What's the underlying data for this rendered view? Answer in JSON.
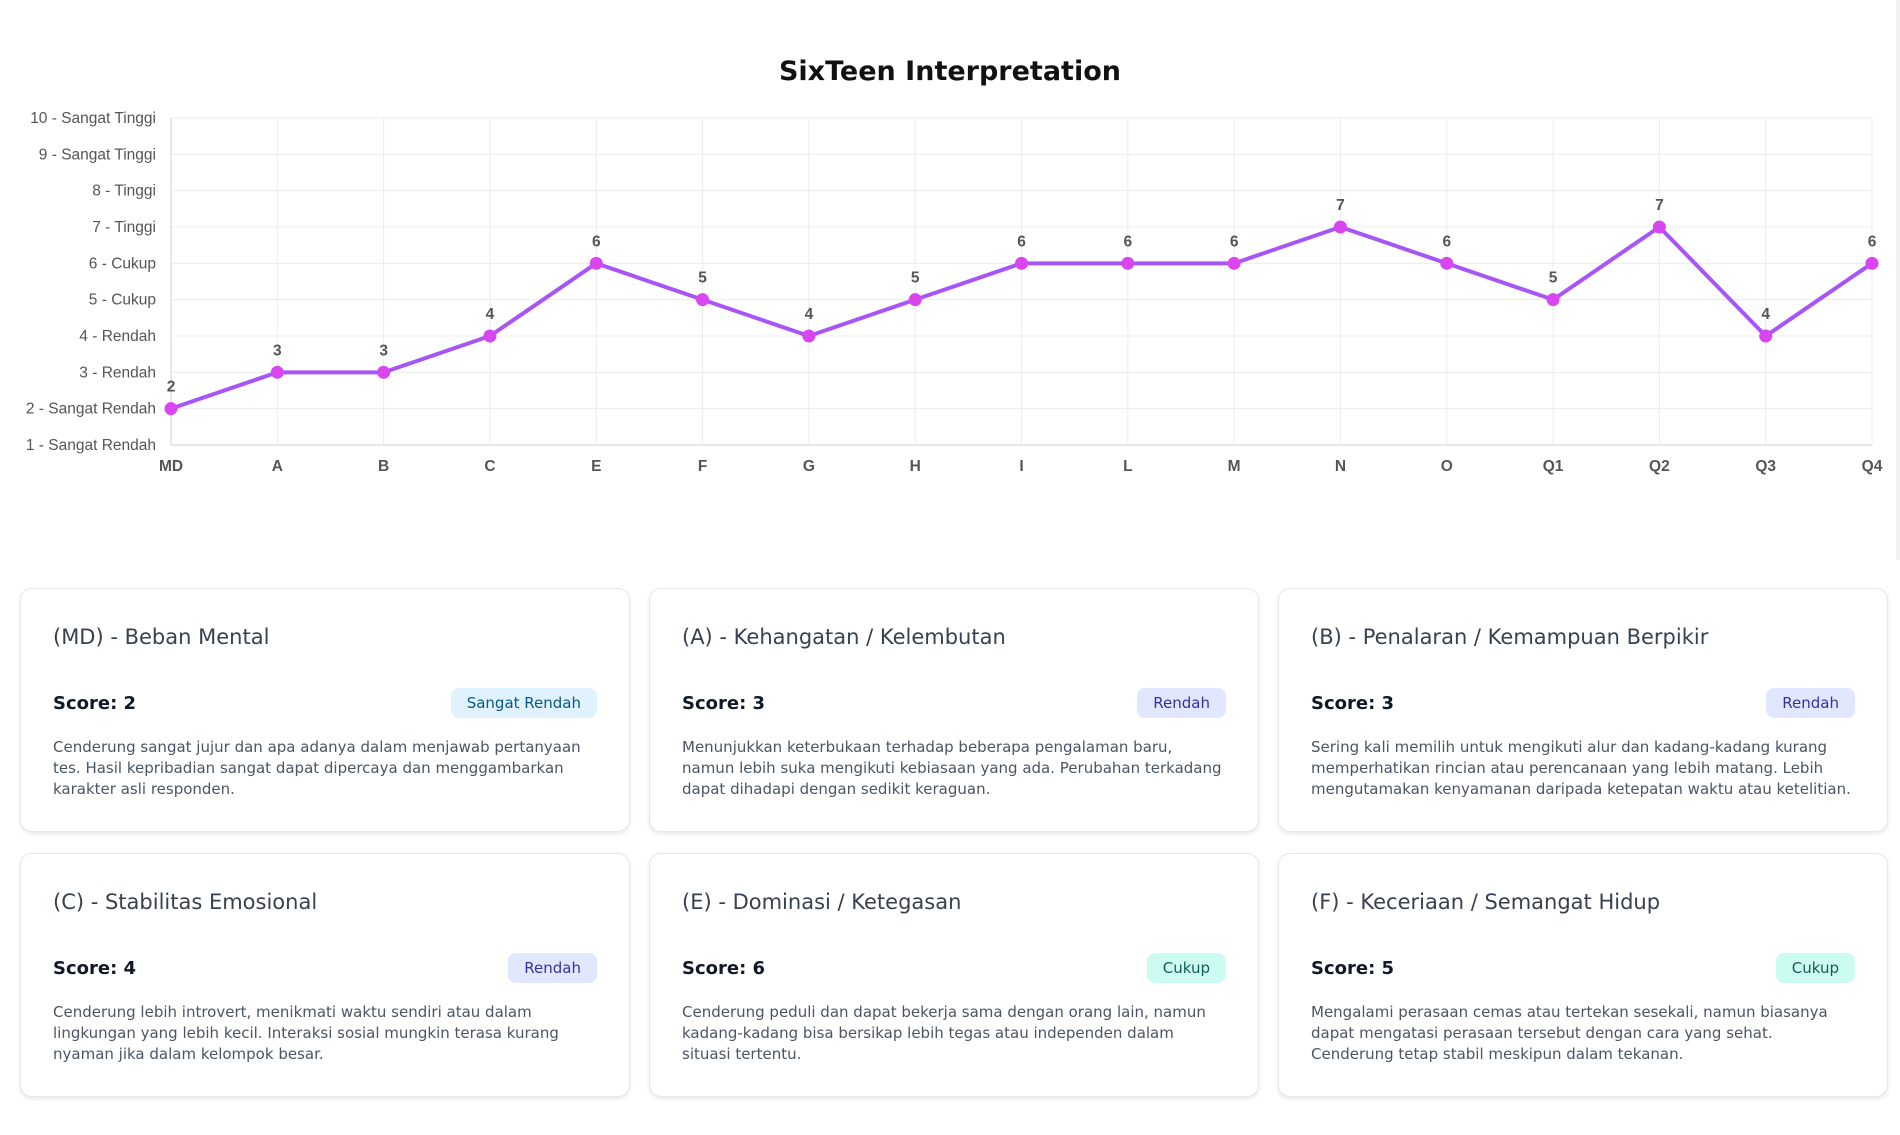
{
  "page": {
    "title": "SixTeen Interpretation"
  },
  "chart_data": {
    "type": "line",
    "title": "SixTeen Interpretation",
    "categories": [
      "MD",
      "A",
      "B",
      "C",
      "E",
      "F",
      "G",
      "H",
      "I",
      "L",
      "M",
      "N",
      "O",
      "Q1",
      "Q2",
      "Q3",
      "Q4"
    ],
    "values": [
      2,
      3,
      3,
      4,
      6,
      5,
      4,
      5,
      6,
      6,
      6,
      7,
      6,
      5,
      7,
      4,
      6
    ],
    "data_labels": [
      "2",
      "3",
      "3",
      "4",
      "6",
      "5",
      "4",
      "5",
      "6",
      "6",
      "6",
      "7",
      "6",
      "5",
      "7",
      "4",
      "6"
    ],
    "y_ticks": [
      {
        "value": 1,
        "label": "1 - Sangat Rendah"
      },
      {
        "value": 2,
        "label": "2 - Sangat Rendah"
      },
      {
        "value": 3,
        "label": "3 - Rendah"
      },
      {
        "value": 4,
        "label": "4 - Rendah"
      },
      {
        "value": 5,
        "label": "5 - Cukup"
      },
      {
        "value": 6,
        "label": "6 - Cukup"
      },
      {
        "value": 7,
        "label": "7 - Tinggi"
      },
      {
        "value": 8,
        "label": "8 - Tinggi"
      },
      {
        "value": 9,
        "label": "9 - Sangat Tinggi"
      },
      {
        "value": 10,
        "label": "10 - Sangat Tinggi"
      }
    ],
    "ylim": [
      1,
      10
    ],
    "grid": true,
    "line_color": "#a855f7",
    "point_color": "#d946ef",
    "xlabel": "",
    "ylabel": ""
  },
  "cards": [
    {
      "title": "(MD) - Beban Mental",
      "score_label": "Score: 2",
      "badge": "Sangat Rendah",
      "level": "very-low",
      "description": "Cenderung sangat jujur dan apa adanya dalam menjawab pertanyaan tes. Hasil kepribadian sangat dapat dipercaya dan menggambarkan karakter asli responden."
    },
    {
      "title": "(A) - Kehangatan / Kelembutan",
      "score_label": "Score: 3",
      "badge": "Rendah",
      "level": "low",
      "description": "Menunjukkan keterbukaan terhadap beberapa pengalaman baru, namun lebih suka mengikuti kebiasaan yang ada. Perubahan terkadang dapat dihadapi dengan sedikit keraguan."
    },
    {
      "title": "(B) - Penalaran / Kemampuan Berpikir",
      "score_label": "Score: 3",
      "badge": "Rendah",
      "level": "low",
      "description": "Sering kali memilih untuk mengikuti alur dan kadang-kadang kurang memperhatikan rincian atau perencanaan yang lebih matang. Lebih mengutamakan kenyamanan daripada ketepatan waktu atau ketelitian."
    },
    {
      "title": "(C) - Stabilitas Emosional",
      "score_label": "Score: 4",
      "badge": "Rendah",
      "level": "low",
      "description": "Cenderung lebih introvert, menikmati waktu sendiri atau dalam lingkungan yang lebih kecil. Interaksi sosial mungkin terasa kurang nyaman jika dalam kelompok besar."
    },
    {
      "title": "(E) - Dominasi / Ketegasan",
      "score_label": "Score: 6",
      "badge": "Cukup",
      "level": "medium",
      "description": "Cenderung peduli dan dapat bekerja sama dengan orang lain, namun kadang-kadang bisa bersikap lebih tegas atau independen dalam situasi tertentu."
    },
    {
      "title": "(F) - Keceriaan / Semangat Hidup",
      "score_label": "Score: 5",
      "badge": "Cukup",
      "level": "medium",
      "description": "Mengalami perasaan cemas atau tertekan sesekali, namun biasanya dapat mengatasi perasaan tersebut dengan cara yang sehat. Cenderung tetap stabil meskipun dalam tekanan."
    }
  ]
}
